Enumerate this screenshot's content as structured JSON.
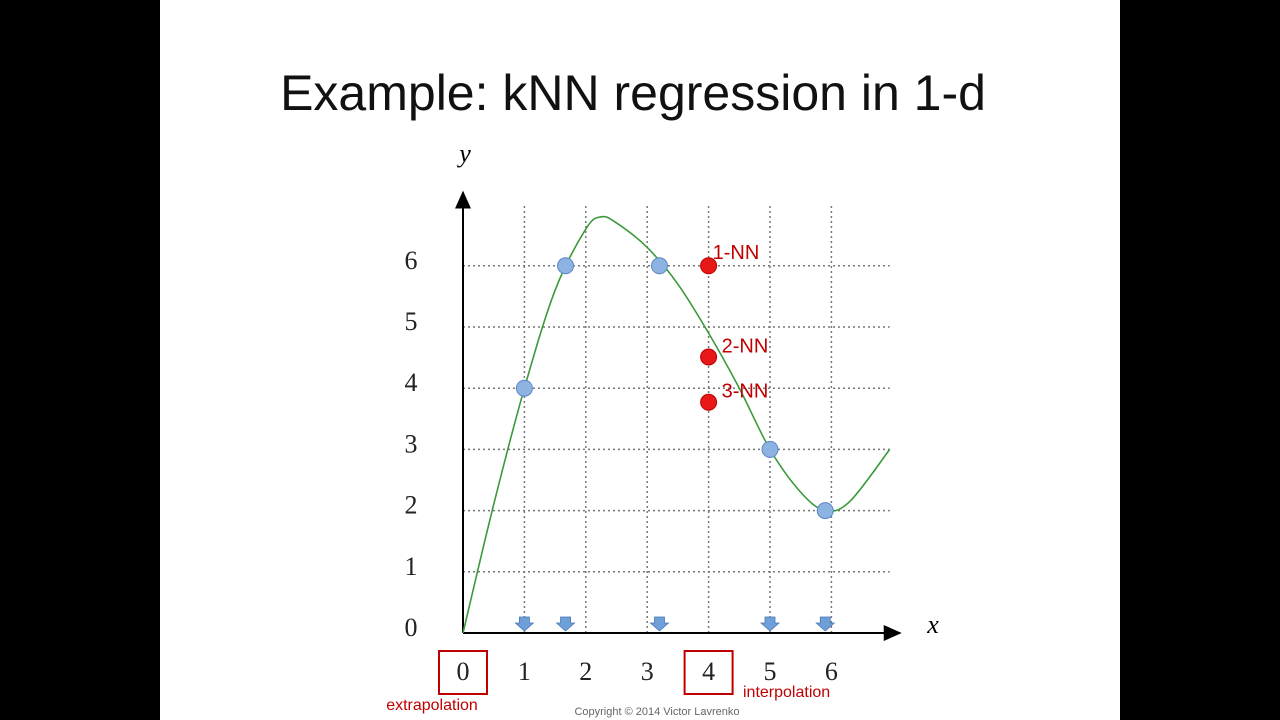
{
  "title": "Example: kNN regression in 1-d",
  "copyright": "Copyright © 2014 Victor Lavrenko",
  "chart_data": {
    "type": "scatter",
    "x_label": "x",
    "y_label": "y",
    "xlim": [
      0,
      6.95
    ],
    "ylim": [
      0,
      7
    ],
    "xticks": [
      0,
      1,
      2,
      3,
      4,
      5,
      6
    ],
    "yticks": [
      0,
      1,
      2,
      3,
      4,
      5,
      6
    ],
    "grid": true,
    "series": [
      {
        "color": "#8db3e2",
        "x": [
          1,
          1.67,
          3.2,
          5,
          5.9
        ],
        "values": [
          4,
          6,
          6,
          3,
          2
        ]
      },
      {
        "color": "#e81818",
        "x": [
          4,
          4,
          4
        ],
        "values": [
          6,
          4.51,
          3.77
        ],
        "labels": [
          "1-NN",
          "2-NN",
          "3-NN"
        ]
      }
    ],
    "curve": {
      "color": "#3a9a3a",
      "x": [
        0,
        0.5,
        1,
        1.5,
        2,
        2.25,
        2.5,
        3,
        3.5,
        4,
        4.5,
        5,
        5.5,
        5.9,
        6.3,
        6.95
      ],
      "values": [
        0,
        2.1,
        4,
        5.6,
        6.6,
        6.8,
        6.7,
        6.3,
        5.7,
        4.9,
        4.0,
        3.0,
        2.3,
        2.0,
        2.15,
        3.0
      ]
    },
    "annotations": [
      {
        "text": "extrapolation",
        "x": 0
      },
      {
        "text": "interpolation",
        "x": 4
      }
    ]
  }
}
